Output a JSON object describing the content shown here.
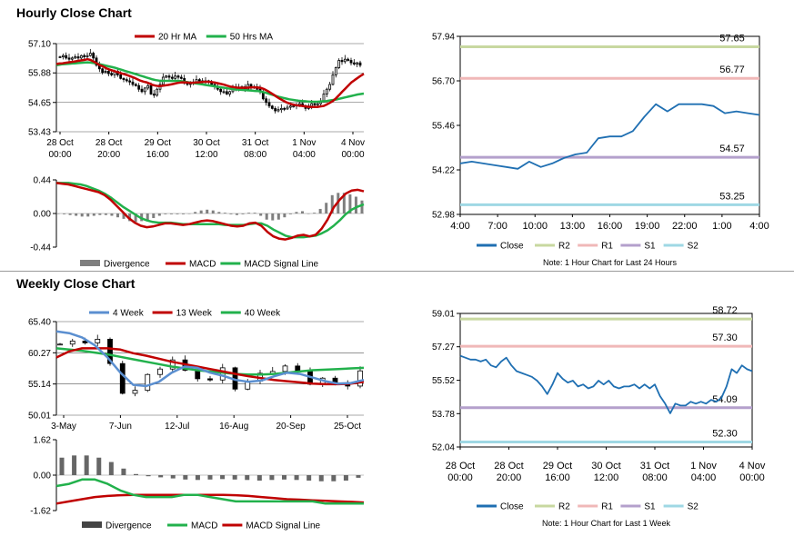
{
  "hourly_title": "Hourly Close Chart",
  "weekly_title": "Weekly Close Chart",
  "colors": {
    "ma_short": "#c00000",
    "ma_long": "#22b14c",
    "close": "#1f6fb2",
    "r2": "#c8d8a0",
    "r1": "#f0b8b8",
    "s1": "#b4a0cc",
    "s2": "#9fd8e4",
    "divergence": "#7f7f7f",
    "week4": "#5b8fd0"
  },
  "chart_data": [
    {
      "id": "hourly_price",
      "type": "candlestick",
      "yticks": [
        "57.10",
        "55.88",
        "54.65",
        "53.43"
      ],
      "ylim": [
        53.43,
        57.1
      ],
      "xticks": [
        {
          "line1": "28 Oct",
          "line2": "00:00"
        },
        {
          "line1": "28 Oct",
          "line2": "20:00"
        },
        {
          "line1": "29 Oct",
          "line2": "16:00"
        },
        {
          "line1": "30 Oct",
          "line2": "12:00"
        },
        {
          "line1": "31 Oct",
          "line2": "08:00"
        },
        {
          "line1": "1 Nov",
          "line2": "04:00"
        },
        {
          "line1": "4 Nov",
          "line2": "00:00"
        }
      ],
      "legend": [
        "20 Hr MA",
        "50 Hrs MA"
      ],
      "close": [
        56.55,
        56.6,
        56.5,
        56.45,
        56.5,
        56.55,
        56.5,
        56.6,
        56.55,
        56.6,
        56.7,
        56.5,
        56.2,
        56.05,
        55.9,
        55.95,
        55.85,
        55.8,
        55.95,
        55.8,
        55.65,
        55.6,
        55.55,
        55.5,
        55.4,
        55.35,
        55.2,
        55.1,
        55.25,
        55.35,
        55.0,
        54.95,
        55.2,
        55.4,
        55.7,
        55.75,
        55.7,
        55.65,
        55.75,
        55.7,
        55.65,
        55.5,
        55.4,
        55.45,
        55.5,
        55.6,
        55.55,
        55.5,
        55.55,
        55.5,
        55.4,
        55.3,
        55.2,
        55.1,
        55.1,
        55.0,
        55.1,
        55.3,
        55.25,
        55.2,
        55.3,
        55.2,
        55.4,
        55.3,
        55.3,
        55.2,
        55.1,
        54.8,
        54.65,
        54.5,
        54.4,
        54.3,
        54.35,
        54.4,
        54.38,
        54.45,
        54.5,
        54.5,
        54.55,
        54.6,
        54.5,
        54.4,
        54.5,
        54.6,
        54.55,
        54.6,
        54.7,
        55.0,
        55.2,
        55.4,
        55.8,
        56.1,
        56.4,
        56.35,
        56.45,
        56.4,
        56.3,
        56.25,
        56.3,
        56.2
      ],
      "ma20": [
        56.25,
        56.27,
        56.28,
        56.3,
        56.32,
        56.34,
        56.36,
        56.38,
        56.4,
        56.42,
        56.45,
        56.42,
        56.35,
        56.28,
        56.2,
        56.15,
        56.08,
        56.02,
        55.98,
        55.94,
        55.9,
        55.86,
        55.82,
        55.78,
        55.73,
        55.68,
        55.62,
        55.56,
        55.52,
        55.49,
        55.44,
        55.38,
        55.35,
        55.33,
        55.34,
        55.36,
        55.38,
        55.4,
        55.43,
        55.46,
        55.48,
        55.49,
        55.48,
        55.47,
        55.47,
        55.48,
        55.49,
        55.5,
        55.51,
        55.51,
        55.5,
        55.48,
        55.45,
        55.42,
        55.39,
        55.35,
        55.31,
        55.29,
        55.27,
        55.26,
        55.26,
        55.26,
        55.27,
        55.28,
        55.28,
        55.27,
        55.25,
        55.2,
        55.13,
        55.05,
        54.97,
        54.88,
        54.8,
        54.73,
        54.66,
        54.61,
        54.57,
        54.54,
        54.52,
        54.51,
        54.49,
        54.47,
        54.46,
        54.46,
        54.46,
        54.48,
        54.5,
        54.56,
        54.63,
        54.71,
        54.82,
        54.95,
        55.09,
        55.22,
        55.35,
        55.48,
        55.58,
        55.67,
        55.76,
        55.84
      ],
      "ma50": [
        56.2,
        56.22,
        56.24,
        56.25,
        56.26,
        56.27,
        56.28,
        56.29,
        56.3,
        56.31,
        56.32,
        56.31,
        56.29,
        56.27,
        56.24,
        56.21,
        56.18,
        56.15,
        56.12,
        56.09,
        56.05,
        56.01,
        55.97,
        55.93,
        55.89,
        55.85,
        55.81,
        55.77,
        55.73,
        55.69,
        55.65,
        55.61,
        55.58,
        55.56,
        55.55,
        55.55,
        55.55,
        55.55,
        55.55,
        55.55,
        55.54,
        55.52,
        55.5,
        55.48,
        55.46,
        55.44,
        55.42,
        55.4,
        55.38,
        55.36,
        55.34,
        55.32,
        55.3,
        55.28,
        55.26,
        55.24,
        55.22,
        55.2,
        55.19,
        55.18,
        55.17,
        55.16,
        55.15,
        55.14,
        55.13,
        55.12,
        55.1,
        55.07,
        55.03,
        54.99,
        54.95,
        54.91,
        54.87,
        54.84,
        54.81,
        54.78,
        54.76,
        54.74,
        54.72,
        54.71,
        54.7,
        54.69,
        54.68,
        54.68,
        54.68,
        54.69,
        54.7,
        54.71,
        54.73,
        54.75,
        54.77,
        54.8,
        54.83,
        54.86,
        54.89,
        54.92,
        54.95,
        54.98,
        55.0,
        55.02
      ]
    },
    {
      "id": "hourly_macd",
      "type": "line+bar",
      "yticks": [
        "0.44",
        "0.00",
        "-0.44"
      ],
      "ylim": [
        -0.44,
        0.44
      ],
      "legend": [
        "Divergence",
        "MACD",
        "MACD Signal Line"
      ],
      "macd": [
        0.4,
        0.39,
        0.38,
        0.36,
        0.34,
        0.32,
        0.3,
        0.28,
        0.24,
        0.18,
        0.1,
        0.02,
        -0.06,
        -0.12,
        -0.16,
        -0.18,
        -0.17,
        -0.15,
        -0.13,
        -0.13,
        -0.14,
        -0.15,
        -0.14,
        -0.12,
        -0.1,
        -0.09,
        -0.1,
        -0.12,
        -0.14,
        -0.16,
        -0.17,
        -0.16,
        -0.13,
        -0.12,
        -0.16,
        -0.24,
        -0.3,
        -0.33,
        -0.34,
        -0.32,
        -0.29,
        -0.28,
        -0.3,
        -0.28,
        -0.2,
        -0.08,
        0.08,
        0.18,
        0.26,
        0.3,
        0.31,
        0.29
      ],
      "signal": [
        0.4,
        0.4,
        0.4,
        0.39,
        0.38,
        0.36,
        0.33,
        0.3,
        0.26,
        0.21,
        0.15,
        0.09,
        0.04,
        -0.01,
        -0.06,
        -0.09,
        -0.11,
        -0.12,
        -0.12,
        -0.12,
        -0.13,
        -0.14,
        -0.14,
        -0.14,
        -0.14,
        -0.14,
        -0.14,
        -0.14,
        -0.15,
        -0.15,
        -0.15,
        -0.15,
        -0.14,
        -0.13,
        -0.13,
        -0.16,
        -0.21,
        -0.25,
        -0.29,
        -0.31,
        -0.31,
        -0.31,
        -0.3,
        -0.29,
        -0.26,
        -0.22,
        -0.16,
        -0.09,
        -0.01,
        0.05,
        0.09,
        0.12
      ]
    },
    {
      "id": "hourly_pivot",
      "type": "line",
      "yticks": [
        "57.94",
        "56.70",
        "55.46",
        "54.22",
        "52.98"
      ],
      "ylim": [
        52.98,
        57.94
      ],
      "xticks": [
        "4:00",
        "7:00",
        "10:00",
        "13:00",
        "16:00",
        "19:00",
        "22:00",
        "1:00",
        "4:00"
      ],
      "levels": [
        {
          "name": "R2",
          "value": 57.65,
          "label": "57.65"
        },
        {
          "name": "R1",
          "value": 56.77,
          "label": "56.77"
        },
        {
          "name": "S1",
          "value": 54.57,
          "label": "54.57"
        },
        {
          "name": "S2",
          "value": 53.25,
          "label": "53.25"
        }
      ],
      "close": [
        54.4,
        54.45,
        54.4,
        54.35,
        54.3,
        54.25,
        54.45,
        54.3,
        54.4,
        54.55,
        54.65,
        54.7,
        55.1,
        55.15,
        55.15,
        55.3,
        55.7,
        56.05,
        55.85,
        56.05,
        56.05,
        56.05,
        56.0,
        55.8,
        55.85,
        55.8,
        55.75
      ],
      "legend": [
        "Close",
        "R2",
        "R1",
        "S1",
        "S2"
      ],
      "note": "Note: 1 Hour Chart for Last 24 Hours"
    },
    {
      "id": "weekly_price",
      "type": "candlestick",
      "yticks": [
        "65.40",
        "60.27",
        "55.14",
        "50.01"
      ],
      "ylim": [
        50.01,
        65.4
      ],
      "xticks": [
        "3-May",
        "7-Jun",
        "12-Jul",
        "16-Aug",
        "20-Sep",
        "25-Oct"
      ],
      "legend": [
        "4 Week",
        "13 Week",
        "40 Week"
      ],
      "close": [
        61.7,
        62.2,
        61.9,
        62.5,
        58.5,
        53.6,
        54.1,
        56.7,
        57.6,
        59.1,
        57.4,
        56.0,
        55.8,
        57.8,
        54.3,
        55.6,
        56.9,
        57.2,
        58.1,
        57.2,
        55.1,
        56.1,
        55.2,
        54.8,
        57.3
      ],
      "week4": [
        63.8,
        63.5,
        62.8,
        61.5,
        59.5,
        57.0,
        55.0,
        54.8,
        55.5,
        57.0,
        58.0,
        57.8,
        57.0,
        56.5,
        55.8,
        55.5,
        55.7,
        56.4,
        57.0,
        56.8,
        56.2,
        55.6,
        55.2,
        55.3,
        55.8
      ],
      "week13": [
        59.5,
        60.5,
        61.0,
        61.0,
        61.0,
        60.8,
        60.2,
        59.8,
        59.3,
        58.8,
        58.4,
        58.0,
        57.6,
        57.2,
        56.8,
        56.4,
        56.1,
        55.8,
        55.6,
        55.4,
        55.2,
        55.1,
        55.1,
        55.2,
        55.5
      ],
      "week40": [
        61.0,
        60.8,
        60.6,
        60.3,
        60.0,
        59.6,
        59.2,
        58.8,
        58.4,
        58.0,
        57.7,
        57.4,
        57.2,
        57.0,
        56.8,
        56.7,
        56.7,
        56.8,
        57.0,
        57.2,
        57.4,
        57.5,
        57.6,
        57.7,
        57.8
      ]
    },
    {
      "id": "weekly_macd",
      "type": "line+bar",
      "yticks": [
        "1.62",
        "0.00",
        "-1.62"
      ],
      "ylim": [
        -1.62,
        1.62
      ],
      "legend": [
        "Divergence",
        "MACD",
        "MACD Signal Line"
      ],
      "divergence": [
        0.8,
        0.9,
        0.9,
        0.8,
        0.6,
        0.3,
        0.05,
        -0.05,
        -0.1,
        -0.15,
        -0.2,
        -0.22,
        -0.2,
        -0.18,
        -0.2,
        -0.22,
        -0.25,
        -0.22,
        -0.2,
        -0.22,
        -0.25,
        -0.28,
        -0.28,
        -0.25,
        -0.12
      ],
      "macd": [
        -0.5,
        -0.4,
        -0.2,
        -0.2,
        -0.4,
        -0.7,
        -0.9,
        -1.0,
        -1.0,
        -1.0,
        -0.9,
        -0.9,
        -1.0,
        -1.1,
        -1.2,
        -1.2,
        -1.2,
        -1.2,
        -1.2,
        -1.2,
        -1.2,
        -1.3,
        -1.3,
        -1.3,
        -1.3
      ],
      "signal": [
        -1.3,
        -1.2,
        -1.1,
        -1.0,
        -0.95,
        -0.92,
        -0.9,
        -0.9,
        -0.9,
        -0.9,
        -0.9,
        -0.9,
        -0.9,
        -0.9,
        -0.92,
        -0.95,
        -1.0,
        -1.05,
        -1.1,
        -1.12,
        -1.15,
        -1.17,
        -1.2,
        -1.22,
        -1.25
      ]
    },
    {
      "id": "weekly_pivot",
      "type": "line",
      "yticks": [
        "59.01",
        "57.27",
        "55.52",
        "53.78",
        "52.04"
      ],
      "ylim": [
        52.04,
        59.01
      ],
      "xticks": [
        {
          "line1": "28 Oct",
          "line2": "00:00"
        },
        {
          "line1": "28 Oct",
          "line2": "20:00"
        },
        {
          "line1": "29 Oct",
          "line2": "16:00"
        },
        {
          "line1": "30 Oct",
          "line2": "12:00"
        },
        {
          "line1": "31 Oct",
          "line2": "08:00"
        },
        {
          "line1": "1 Nov",
          "line2": "04:00"
        },
        {
          "line1": "4 Nov",
          "line2": "00:00"
        }
      ],
      "levels": [
        {
          "name": "R2",
          "value": 58.72,
          "label": "58.72"
        },
        {
          "name": "R1",
          "value": 57.3,
          "label": "57.30"
        },
        {
          "name": "S1",
          "value": 54.09,
          "label": "54.09"
        },
        {
          "name": "S2",
          "value": 52.3,
          "label": "52.30"
        }
      ],
      "close": [
        56.8,
        56.7,
        56.6,
        56.6,
        56.5,
        56.6,
        56.3,
        56.2,
        56.5,
        56.7,
        56.3,
        56.0,
        55.9,
        55.8,
        55.7,
        55.5,
        55.2,
        54.8,
        55.3,
        55.9,
        55.6,
        55.4,
        55.5,
        55.2,
        55.3,
        55.1,
        55.2,
        55.5,
        55.3,
        55.5,
        55.2,
        55.1,
        55.2,
        55.2,
        55.3,
        55.1,
        55.3,
        55.1,
        55.3,
        54.7,
        54.3,
        53.8,
        54.3,
        54.2,
        54.2,
        54.4,
        54.3,
        54.4,
        54.3,
        54.5,
        54.4,
        54.6,
        55.2,
        56.1,
        55.9,
        56.3,
        56.1,
        56.0
      ],
      "legend": [
        "Close",
        "R2",
        "R1",
        "S1",
        "S2"
      ],
      "note": "Note: 1 Hour Chart for Last 1 Week"
    }
  ]
}
